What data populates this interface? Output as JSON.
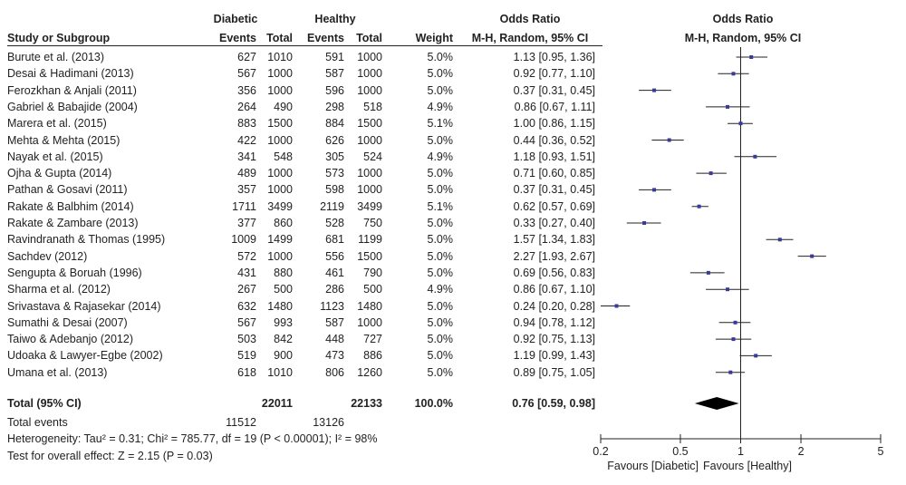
{
  "header": {
    "group1": "Diabetic",
    "group2": "Healthy",
    "or_col_title": "Odds Ratio",
    "or_col_method": "M-H, Random, 95% CI",
    "plot_title": "Odds Ratio",
    "plot_method": "M-H, Random, 95% CI",
    "study_col": "Study or Subgroup",
    "events": "Events",
    "total": "Total",
    "weight": "Weight"
  },
  "studies": [
    {
      "name": "Burute et al. (2013)",
      "e1": "627",
      "n1": "1010",
      "e2": "591",
      "n2": "1000",
      "weight": "5.0%",
      "ci_text": "1.13 [0.95, 1.36]"
    },
    {
      "name": "Desai & Hadimani  (2013)",
      "e1": "567",
      "n1": "1000",
      "e2": "587",
      "n2": "1000",
      "weight": "5.0%",
      "ci_text": "0.92 [0.77, 1.10]"
    },
    {
      "name": "Ferozkhan & Anjali (2011)",
      "e1": "356",
      "n1": "1000",
      "e2": "596",
      "n2": "1000",
      "weight": "5.0%",
      "ci_text": "0.37 [0.31, 0.45]"
    },
    {
      "name": "Gabriel & Babajide (2004)",
      "e1": "264",
      "n1": "490",
      "e2": "298",
      "n2": "518",
      "weight": "4.9%",
      "ci_text": "0.86 [0.67, 1.11]"
    },
    {
      "name": "Marera et al. (2015)",
      "e1": "883",
      "n1": "1500",
      "e2": "884",
      "n2": "1500",
      "weight": "5.1%",
      "ci_text": "1.00 [0.86, 1.15]"
    },
    {
      "name": "Mehta & Mehta (2015)",
      "e1": "422",
      "n1": "1000",
      "e2": "626",
      "n2": "1000",
      "weight": "5.0%",
      "ci_text": "0.44 [0.36, 0.52]"
    },
    {
      "name": "Nayak et al. (2015)",
      "e1": "341",
      "n1": "548",
      "e2": "305",
      "n2": "524",
      "weight": "4.9%",
      "ci_text": "1.18 [0.93, 1.51]"
    },
    {
      "name": "Ojha & Gupta (2014)",
      "e1": "489",
      "n1": "1000",
      "e2": "573",
      "n2": "1000",
      "weight": "5.0%",
      "ci_text": "0.71 [0.60, 0.85]"
    },
    {
      "name": "Pathan & Gosavi (2011)",
      "e1": "357",
      "n1": "1000",
      "e2": "598",
      "n2": "1000",
      "weight": "5.0%",
      "ci_text": "0.37 [0.31, 0.45]"
    },
    {
      "name": "Rakate & Balbhim (2014)",
      "e1": "1711",
      "n1": "3499",
      "e2": "2119",
      "n2": "3499",
      "weight": "5.1%",
      "ci_text": "0.62 [0.57, 0.69]"
    },
    {
      "name": "Rakate & Zambare (2013)",
      "e1": "377",
      "n1": "860",
      "e2": "528",
      "n2": "750",
      "weight": "5.0%",
      "ci_text": "0.33 [0.27, 0.40]"
    },
    {
      "name": "Ravindranath & Thomas (1995)",
      "e1": "1009",
      "n1": "1499",
      "e2": "681",
      "n2": "1199",
      "weight": "5.0%",
      "ci_text": "1.57 [1.34, 1.83]"
    },
    {
      "name": "Sachdev (2012)",
      "e1": "572",
      "n1": "1000",
      "e2": "556",
      "n2": "1500",
      "weight": "5.0%",
      "ci_text": "2.27 [1.93, 2.67]"
    },
    {
      "name": "Sengupta & Boruah (1996)",
      "e1": "431",
      "n1": "880",
      "e2": "461",
      "n2": "790",
      "weight": "5.0%",
      "ci_text": "0.69 [0.56, 0.83]"
    },
    {
      "name": "Sharma et al. (2012)",
      "e1": "267",
      "n1": "500",
      "e2": "286",
      "n2": "500",
      "weight": "4.9%",
      "ci_text": "0.86 [0.67, 1.10]"
    },
    {
      "name": "Srivastava & Rajasekar (2014)",
      "e1": "632",
      "n1": "1480",
      "e2": "1123",
      "n2": "1480",
      "weight": "5.0%",
      "ci_text": "0.24 [0.20, 0.28]"
    },
    {
      "name": "Sumathi & Desai (2007)",
      "e1": "567",
      "n1": "993",
      "e2": "587",
      "n2": "1000",
      "weight": "5.0%",
      "ci_text": "0.94 [0.78, 1.12]"
    },
    {
      "name": "Taiwo & Adebanjo (2012)",
      "e1": "503",
      "n1": "842",
      "e2": "448",
      "n2": "727",
      "weight": "5.0%",
      "ci_text": "0.92 [0.75, 1.13]"
    },
    {
      "name": "Udoaka & Lawyer-Egbe (2002)",
      "e1": "519",
      "n1": "900",
      "e2": "473",
      "n2": "886",
      "weight": "5.0%",
      "ci_text": "1.19 [0.99, 1.43]"
    },
    {
      "name": "Umana et al. (2013)",
      "e1": "618",
      "n1": "1010",
      "e2": "806",
      "n2": "1260",
      "weight": "5.0%",
      "ci_text": "0.89 [0.75, 1.05]"
    }
  ],
  "total": {
    "label": "Total (95% CI)",
    "n1": "22011",
    "n2": "22133",
    "weight": "100.0%",
    "ci_text": "0.76 [0.59, 0.98]"
  },
  "footer": {
    "events_label": "Total events",
    "events1": "11512",
    "events2": "13126",
    "heterogeneity": "Heterogeneity: Tau² = 0.31; Chi² = 785.77, df = 19 (P < 0.00001); I² = 98%",
    "overall": "Test for overall effect: Z = 2.15 (P = 0.03)"
  },
  "colors": {
    "marker": "#3a3a9a",
    "line": "#222222",
    "diamond": "#000000"
  },
  "chart_data": {
    "type": "forest",
    "scale": "log",
    "title": "Odds Ratio",
    "subtitle": "M-H, Random, 95% CI",
    "xlim": [
      0.2,
      5
    ],
    "x_ticks": [
      0.2,
      0.5,
      1,
      2,
      5
    ],
    "x_tick_labels": [
      "0.2",
      "0.5",
      "1",
      "2",
      "5"
    ],
    "reference_line": 1,
    "xlabel_left": "Favours [Diabetic]",
    "xlabel_right": "Favours [Healthy]",
    "points": [
      {
        "or": 1.13,
        "lo": 0.95,
        "hi": 1.36
      },
      {
        "or": 0.92,
        "lo": 0.77,
        "hi": 1.1
      },
      {
        "or": 0.37,
        "lo": 0.31,
        "hi": 0.45
      },
      {
        "or": 0.86,
        "lo": 0.67,
        "hi": 1.11
      },
      {
        "or": 1.0,
        "lo": 0.86,
        "hi": 1.15
      },
      {
        "or": 0.44,
        "lo": 0.36,
        "hi": 0.52
      },
      {
        "or": 1.18,
        "lo": 0.93,
        "hi": 1.51
      },
      {
        "or": 0.71,
        "lo": 0.6,
        "hi": 0.85
      },
      {
        "or": 0.37,
        "lo": 0.31,
        "hi": 0.45
      },
      {
        "or": 0.62,
        "lo": 0.57,
        "hi": 0.69
      },
      {
        "or": 0.33,
        "lo": 0.27,
        "hi": 0.4
      },
      {
        "or": 1.57,
        "lo": 1.34,
        "hi": 1.83
      },
      {
        "or": 2.27,
        "lo": 1.93,
        "hi": 2.67
      },
      {
        "or": 0.69,
        "lo": 0.56,
        "hi": 0.83
      },
      {
        "or": 0.86,
        "lo": 0.67,
        "hi": 1.1
      },
      {
        "or": 0.24,
        "lo": 0.2,
        "hi": 0.28
      },
      {
        "or": 0.94,
        "lo": 0.78,
        "hi": 1.12
      },
      {
        "or": 0.92,
        "lo": 0.75,
        "hi": 1.13
      },
      {
        "or": 1.19,
        "lo": 0.99,
        "hi": 1.43
      },
      {
        "or": 0.89,
        "lo": 0.75,
        "hi": 1.05
      }
    ],
    "pooled": {
      "or": 0.76,
      "lo": 0.59,
      "hi": 0.98
    }
  }
}
